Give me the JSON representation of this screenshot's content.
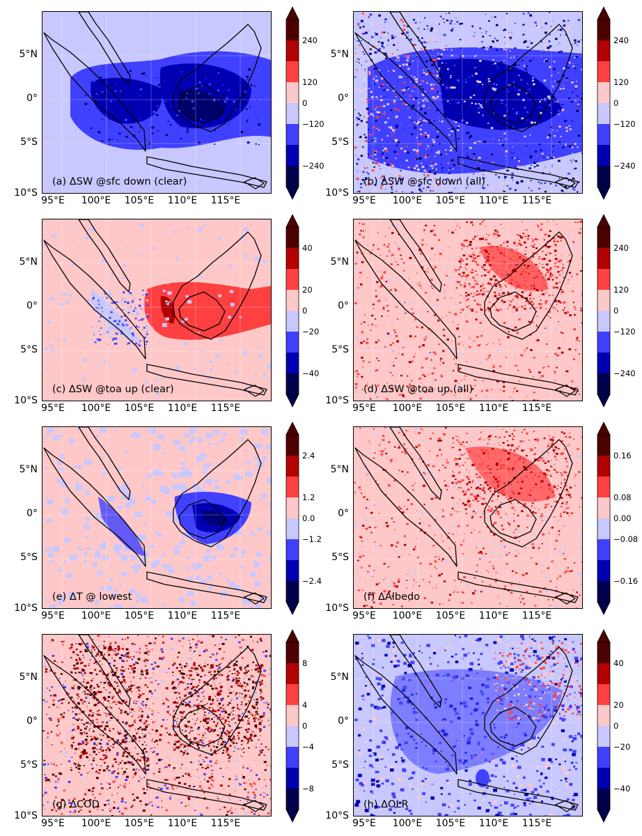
{
  "lat_ticks": [
    "5°N",
    "0°",
    "5°S",
    "10°S"
  ],
  "lon_ticks": [
    "95°E",
    "100°E",
    "105°E",
    "110°E",
    "115°E"
  ],
  "colors": [
    "#00004d",
    "#0000b3",
    "#4040ff",
    "#c8c8ff",
    "#ffc8c8",
    "#ff4040",
    "#b30000",
    "#4d0000"
  ],
  "panels": [
    {
      "id": "a",
      "title": "(a) ΔSW @sfc down (clear)",
      "cbar_ticks": [
        "240",
        "120",
        "0",
        "−120",
        "−240"
      ],
      "pattern": "clear_down"
    },
    {
      "id": "b",
      "title": "(b) ΔSW @sfc down (all)",
      "cbar_ticks": [
        "240",
        "120",
        "0",
        "−120",
        "−240"
      ],
      "pattern": "all_down"
    },
    {
      "id": "c",
      "title": "(c) ΔSW @toa up (clear)",
      "cbar_ticks": [
        "40",
        "20",
        "0",
        "−20",
        "−40"
      ],
      "pattern": "clear_up"
    },
    {
      "id": "d",
      "title": "(d) ΔSW @toa up (all)",
      "cbar_ticks": [
        "240",
        "120",
        "0",
        "−120",
        "−240"
      ],
      "pattern": "all_up"
    },
    {
      "id": "e",
      "title": "(e) ΔT @ lowest",
      "cbar_ticks": [
        "2.4",
        "1.2",
        "0.0",
        "−1.2",
        "−2.4"
      ],
      "pattern": "temp"
    },
    {
      "id": "f",
      "title": "(f) ΔAlbedo",
      "cbar_ticks": [
        "0.16",
        "0.08",
        "0.00",
        "−0.08",
        "−0.16"
      ],
      "pattern": "albedo"
    },
    {
      "id": "g",
      "title": "(g) ΔCOD",
      "cbar_ticks": [
        "8",
        "4",
        "0",
        "−4",
        "−8"
      ],
      "pattern": "cod"
    },
    {
      "id": "h",
      "title": "(h) ΔOLR",
      "cbar_ticks": [
        "40",
        "20",
        "0",
        "−20",
        "−40"
      ],
      "pattern": "olr"
    }
  ]
}
